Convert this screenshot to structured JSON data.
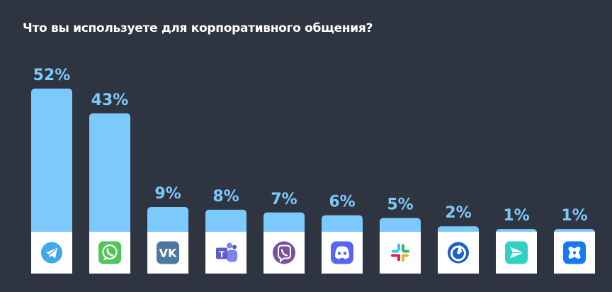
{
  "chart_data": {
    "type": "bar",
    "title": "Что вы используете для корпоративного общения?",
    "categories": [
      "Telegram",
      "WhatsApp",
      "VK",
      "Microsoft Teams",
      "Viber",
      "Discord",
      "Slack",
      "Mattermost",
      "Pachca",
      "Compass"
    ],
    "values": [
      52,
      43,
      9,
      8,
      7,
      6,
      5,
      2,
      1,
      1
    ],
    "value_labels": [
      "52%",
      "43%",
      "9%",
      "8%",
      "7%",
      "6%",
      "5%",
      "2%",
      "1%",
      "1%"
    ],
    "ylim": [
      0,
      52
    ],
    "grid": false,
    "legend": "none",
    "colors": {
      "bar": "#7cc9fb",
      "base": "#ffffff",
      "background": "#2f3441",
      "label": "#7cc9fb"
    }
  },
  "icons": [
    {
      "name": "telegram-icon",
      "color": "#40a8e6"
    },
    {
      "name": "whatsapp-icon",
      "color": "#4fc65a"
    },
    {
      "name": "vk-icon",
      "color": "#4d76a1"
    },
    {
      "name": "teams-icon",
      "color": "#5b5fc7"
    },
    {
      "name": "viber-icon",
      "color": "#7b519d"
    },
    {
      "name": "discord-icon",
      "color": "#5865f2"
    },
    {
      "name": "slack-icon",
      "color": "#36c5f0"
    },
    {
      "name": "mattermost-icon",
      "color": "#1e5fc9"
    },
    {
      "name": "pachca-icon",
      "color": "#2fd0c6"
    },
    {
      "name": "compass-icon",
      "color": "#1877f2"
    }
  ]
}
